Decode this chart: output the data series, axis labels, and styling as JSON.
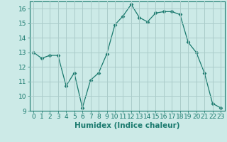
{
  "x": [
    0,
    1,
    2,
    3,
    4,
    5,
    6,
    7,
    8,
    9,
    10,
    11,
    12,
    13,
    14,
    15,
    16,
    17,
    18,
    19,
    20,
    21,
    22,
    23
  ],
  "y": [
    13,
    12.6,
    12.8,
    12.8,
    10.7,
    11.6,
    9.2,
    11.1,
    11.6,
    12.9,
    14.9,
    15.5,
    16.3,
    15.4,
    15.1,
    15.7,
    15.8,
    15.8,
    15.6,
    13.7,
    13.0,
    11.6,
    9.5,
    9.2
  ],
  "xlabel": "Humidex (Indice chaleur)",
  "ylim": [
    9,
    16.5
  ],
  "xlim": [
    -0.5,
    23.5
  ],
  "yticks": [
    9,
    10,
    11,
    12,
    13,
    14,
    15,
    16
  ],
  "xticks": [
    0,
    1,
    2,
    3,
    4,
    5,
    6,
    7,
    8,
    9,
    10,
    11,
    12,
    13,
    14,
    15,
    16,
    17,
    18,
    19,
    20,
    21,
    22,
    23
  ],
  "line_color": "#1a7a6e",
  "marker": "D",
  "marker_size": 2.5,
  "bg_color": "#cceae7",
  "grid_color": "#aaccca",
  "tick_label_fontsize": 6.5,
  "xlabel_fontsize": 7.5
}
